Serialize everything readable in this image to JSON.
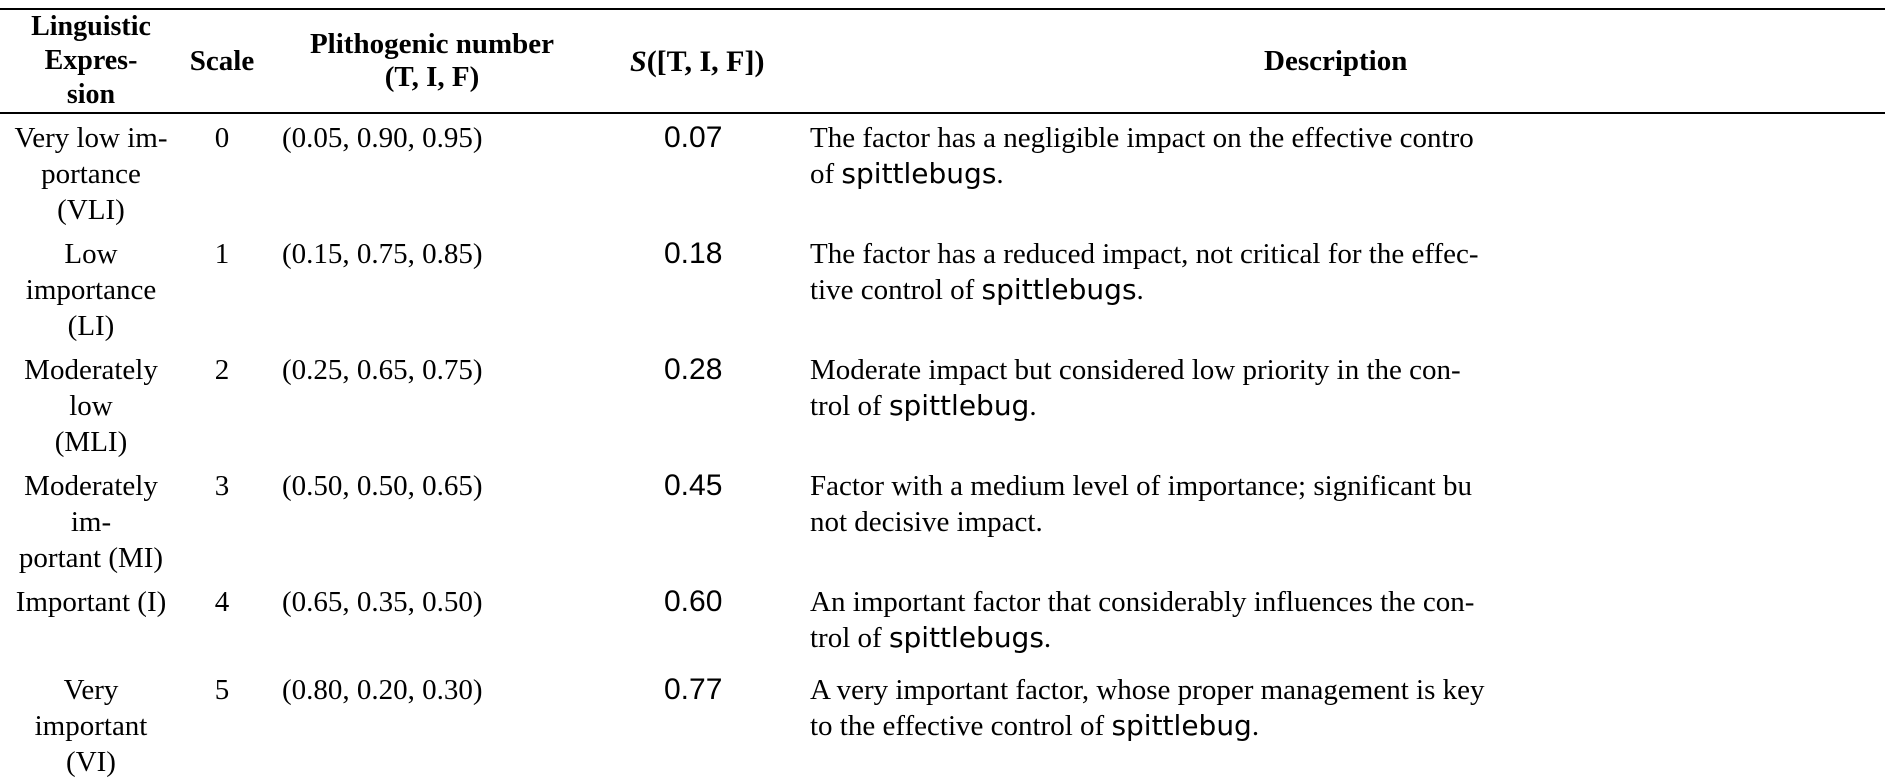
{
  "table": {
    "headers": {
      "expression_line1": "Linguistic Expres-",
      "expression_line2": "sion",
      "scale": "Scale",
      "plithogenic_line1": "Plithogenic number",
      "plithogenic_line2": "(T, I, F)",
      "score_func": "S",
      "score_args": "([T, I, F])",
      "description": "Description"
    },
    "rows": [
      {
        "expr_line1": "Very low im-",
        "expr_line2": "portance (VLI)",
        "scale": "0",
        "number": "(0.05, 0.90, 0.95)",
        "score": "0.07",
        "desc_line1": "The factor has a negligible impact on the effective contro",
        "desc_line2_pre": "of ",
        "desc_line2_word": "spittlebugs",
        "desc_line2_post": "."
      },
      {
        "expr_line1": "Low importance",
        "expr_line2": "(LI)",
        "scale": "1",
        "number": "(0.15, 0.75, 0.85)",
        "score": "0.18",
        "desc_line1": "The factor has a reduced impact, not critical for the effec-",
        "desc_line2_pre": "tive control of ",
        "desc_line2_word": "spittlebugs",
        "desc_line2_post": "."
      },
      {
        "expr_line1": "Moderately low",
        "expr_line2": "(MLI)",
        "scale": "2",
        "number": "(0.25, 0.65, 0.75)",
        "score": "0.28",
        "desc_line1": "Moderate impact but considered low priority in the con-",
        "desc_line2_pre": "trol of ",
        "desc_line2_word": "spittlebug",
        "desc_line2_post": "."
      },
      {
        "expr_line1": "Moderately im-",
        "expr_line2": "portant (MI)",
        "scale": "3",
        "number": "(0.50, 0.50, 0.65)",
        "score": "0.45",
        "desc_line1": "Factor with a medium level of importance; significant bu",
        "desc_line2_pre": "not decisive impact.",
        "desc_line2_word": "",
        "desc_line2_post": ""
      },
      {
        "expr_line1": "Important (I)",
        "expr_line2": "",
        "scale": "4",
        "number": "(0.65, 0.35, 0.50)",
        "score": "0.60",
        "desc_line1": "An important factor that considerably influences the con-",
        "desc_line2_pre": "trol of ",
        "desc_line2_word": "spittlebugs",
        "desc_line2_post": "."
      },
      {
        "expr_line1": "Very important",
        "expr_line2": "(VI)",
        "scale": "5",
        "number": "(0.80, 0.20, 0.30)",
        "score": "0.77",
        "desc_line1": "A very important factor, whose proper management is key",
        "desc_line2_pre": "to the effective control of ",
        "desc_line2_word": "spittlebug",
        "desc_line2_post": "."
      }
    ]
  }
}
